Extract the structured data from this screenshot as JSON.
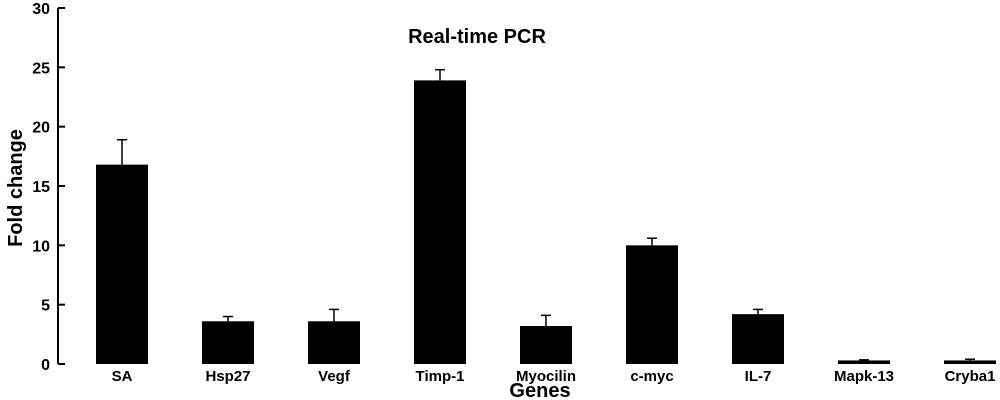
{
  "chart_data": {
    "type": "bar",
    "title": "Real-time PCR",
    "xlabel": "Genes",
    "ylabel": "Fold change",
    "ylim": [
      0,
      30
    ],
    "yticks": [
      0,
      5,
      10,
      15,
      20,
      25,
      30
    ],
    "grid": false,
    "bar_color": "#000000",
    "categories": [
      "SA",
      "Hsp27",
      "Vegf",
      "Timp-1",
      "Myocilin",
      "c-myc",
      "IL-7",
      "Mapk-13",
      "Cryba1"
    ],
    "values": [
      16.8,
      3.6,
      3.6,
      23.9,
      3.2,
      10.0,
      4.2,
      0.3,
      0.3
    ],
    "errors": [
      2.1,
      0.4,
      1.0,
      0.9,
      0.9,
      0.6,
      0.4,
      0.05,
      0.1
    ]
  }
}
